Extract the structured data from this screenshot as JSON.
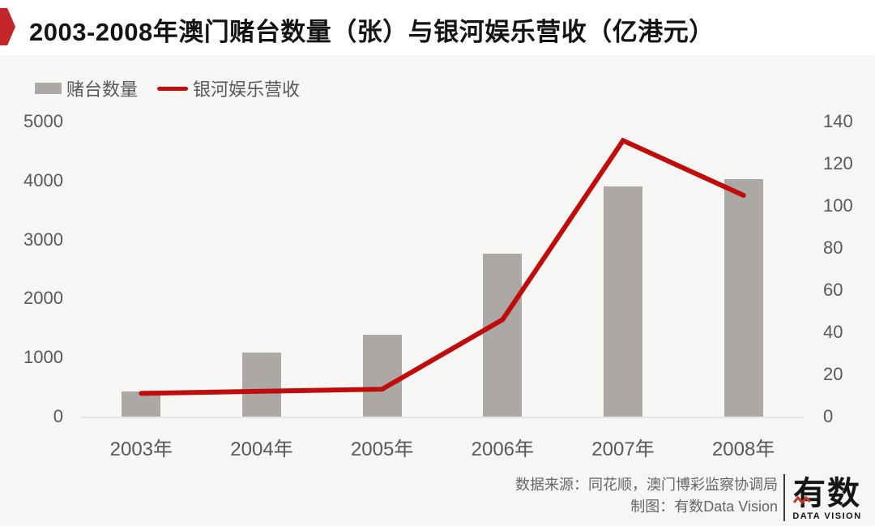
{
  "header": {
    "title": "2003-2008年澳门赌台数量（张）与银河娱乐营收（亿港元）",
    "accent_color": "#c5262c"
  },
  "legend": {
    "items": [
      {
        "label": "赌台数量",
        "type": "bar",
        "color": "#aca8a6"
      },
      {
        "label": "银河娱乐营收",
        "type": "line",
        "color": "#c00d0c"
      }
    ]
  },
  "chart_data": {
    "type": "bar+line combo",
    "title": "2003-2008年澳门赌台数量（张）与银河娱乐营收（亿港元）",
    "categories": [
      "2003年",
      "2004年",
      "2005年",
      "2006年",
      "2007年",
      "2008年"
    ],
    "series": [
      {
        "name": "赌台数量",
        "type": "bar",
        "axis": "left",
        "unit": "张",
        "color": "#aca8a6",
        "values": [
          420,
          1080,
          1390,
          2760,
          3900,
          4020
        ]
      },
      {
        "name": "银河娱乐营收",
        "type": "line",
        "axis": "right",
        "unit": "亿港元",
        "color": "#c00d0c",
        "values": [
          11,
          12,
          13,
          46,
          131,
          105
        ]
      }
    ],
    "left_axis": {
      "min": 0,
      "max": 5000,
      "step": 1000,
      "tick_labels": [
        "0",
        "1000",
        "2000",
        "3000",
        "4000",
        "5000"
      ]
    },
    "right_axis": {
      "min": 0,
      "max": 140,
      "step": 20,
      "tick_labels": [
        "0",
        "20",
        "40",
        "60",
        "80",
        "100",
        "120",
        "140"
      ]
    },
    "grid": false,
    "legend_position": "top-left",
    "axis_line_color": "#e6e5e3"
  },
  "footer": {
    "source_line": "数据来源：同花顺，澳门博彩监察协调局",
    "credit_line": "制图：有数Data Vision",
    "logo_text": "有数",
    "logo_subtext": "DATA VISION",
    "logo_accent_color": "#c0392b"
  }
}
